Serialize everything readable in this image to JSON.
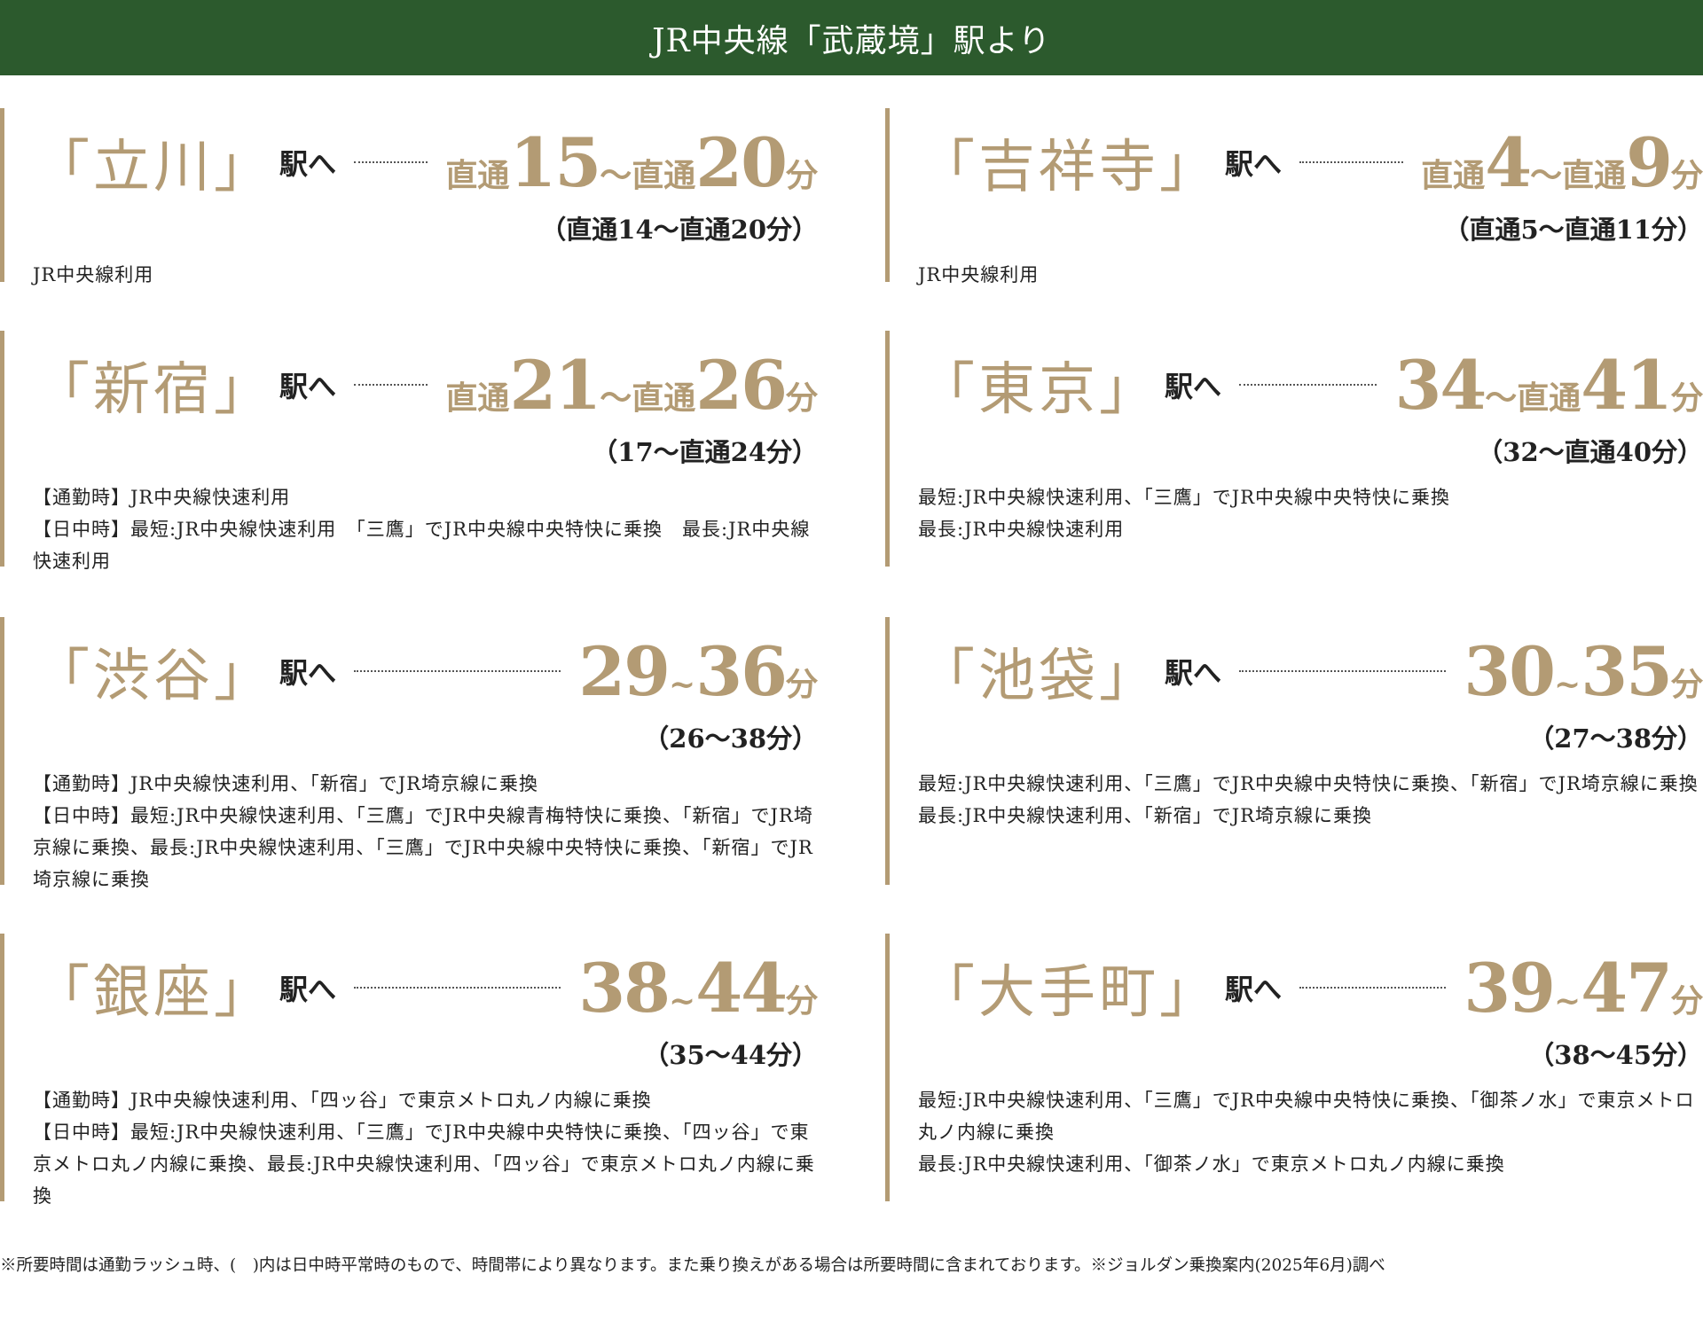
{
  "header": {
    "title": "JR中央線「武蔵境」駅より"
  },
  "station_suffix": "駅へ",
  "stations": [
    {
      "name": "「立川」",
      "time": "直通15～直通20分",
      "daytime": "（直通14～直通20分）",
      "notes": [
        "JR中央線利用"
      ]
    },
    {
      "name": "「吉祥寺」",
      "time": "直通4～直通9分",
      "daytime": "（直通5～直通11分）",
      "notes": [
        "JR中央線利用"
      ]
    },
    {
      "name": "「新宿」",
      "time": "直通21～直通26分",
      "daytime": "（17～直通24分）",
      "notes": [
        "【通勤時】JR中央線快速利用",
        "【日中時】最短:JR中央線快速利用　「三鷹」でJR中央線中央特快に乗換　最長:JR中央線快速利用"
      ]
    },
    {
      "name": "「東京」",
      "time": "34～直通41分",
      "daytime": "（32～直通40分）",
      "notes": [
        "最短:JR中央線快速利用、「三鷹」でJR中央線中央特快に乗換",
        "最長:JR中央線快速利用"
      ]
    },
    {
      "name": "「渋谷」",
      "time": "29~36分",
      "daytime": "（26～38分）",
      "notes": [
        "【通勤時】JR中央線快速利用、「新宿」でJR埼京線に乗換",
        "【日中時】最短:JR中央線快速利用、「三鷹」でJR中央線青梅特快に乗換、「新宿」でJR埼京線に乗換、最長:JR中央線快速利用、「三鷹」でJR中央線中央特快に乗換、「新宿」でJR埼京線に乗換"
      ]
    },
    {
      "name": "「池袋」",
      "time": "30~35分",
      "daytime": "（27～38分）",
      "notes": [
        "最短:JR中央線快速利用、「三鷹」でJR中央線中央特快に乗換、「新宿」でJR埼京線に乗換",
        "最長:JR中央線快速利用、「新宿」でJR埼京線に乗換"
      ]
    },
    {
      "name": "「銀座」",
      "time": "38~44分",
      "daytime": "（35～44分）",
      "notes": [
        "【通勤時】JR中央線快速利用、「四ッ谷」で東京メトロ丸ノ内線に乗換",
        "【日中時】最短:JR中央線快速利用、「三鷹」でJR中央線中央特快に乗換、「四ッ谷」で東京メトロ丸ノ内線に乗換、最長:JR中央線快速利用、「四ッ谷」で東京メトロ丸ノ内線に乗換"
      ]
    },
    {
      "name": "「大手町」",
      "time": "39~47分",
      "daytime": "（38～45分）",
      "notes": [
        "最短:JR中央線快速利用、「三鷹」でJR中央線中央特快に乗換、「御茶ノ水」で東京メトロ丸ノ内線に乗換",
        "最長:JR中央線快速利用、「御茶ノ水」で東京メトロ丸ノ内線に乗換"
      ]
    }
  ],
  "footer": {
    "note": "※所要時間は通勤ラッシュ時、(　)内は日中時平常時のもので、時間帯により異なります。また乗り換えがある場合は所要時間に含まれております。※ジョルダン乗換案内(2025年6月)調べ"
  }
}
